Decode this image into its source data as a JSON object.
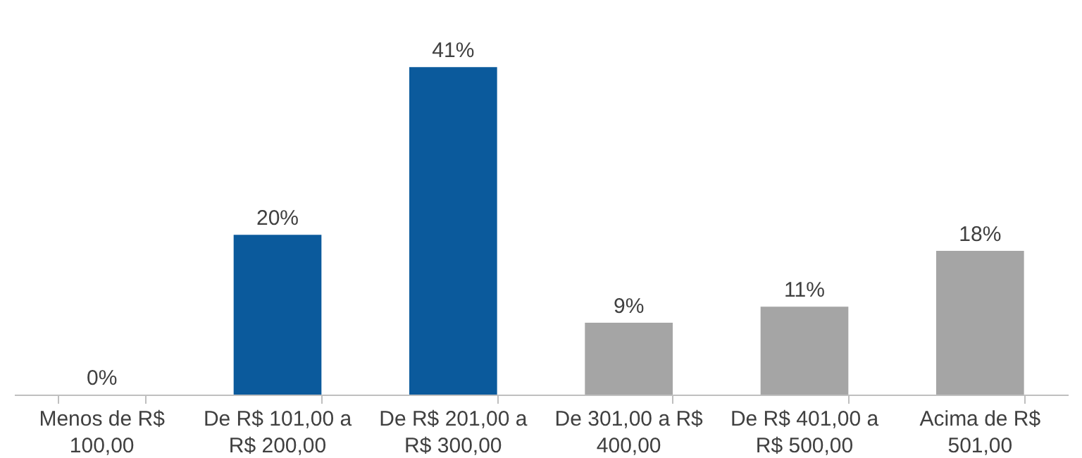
{
  "chart_data": {
    "type": "bar",
    "categories": [
      "Menos de R$ 100,00",
      "De R$ 101,00 a R$ 200,00",
      "De R$ 201,00 a R$ 300,00",
      "De 301,00 a R$ 400,00",
      "De R$ 401,00 a R$ 500,00",
      "Acima de R$ 501,00"
    ],
    "values": [
      0,
      20,
      41,
      9,
      11,
      18
    ],
    "colors": [
      "#a5a5a5",
      "#0b5a9c",
      "#0b5a9c",
      "#a5a5a5",
      "#a5a5a5",
      "#a5a5a5"
    ],
    "value_labels": [
      "0%",
      "20%",
      "41%",
      "9%",
      "11%",
      "18%"
    ],
    "grid": false
  }
}
